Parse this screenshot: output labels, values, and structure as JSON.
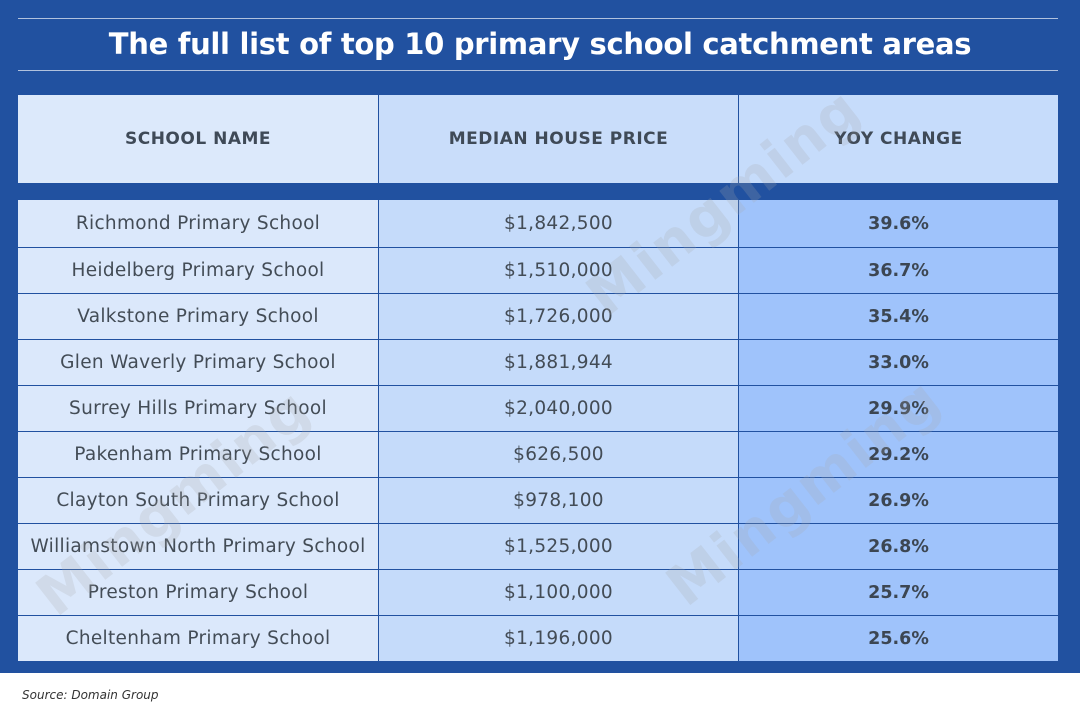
{
  "title": "The full list of top 10 primary school catchment areas",
  "watermark": "Mingming",
  "source": "Source: Domain Group",
  "colors": {
    "panel": "#2151a0",
    "name_col": "#dbe8fb",
    "price_col": "#c5dbfa",
    "yoy_col": "#9fc3fb"
  },
  "chart_data": {
    "type": "table",
    "title": "The full list of top 10 primary school catchment areas",
    "columns": [
      "SCHOOL NAME",
      "MEDIAN HOUSE PRICE",
      "YOY CHANGE"
    ],
    "rows": [
      {
        "school": "Richmond Primary School",
        "price": "$1,842,500",
        "yoy": "39.6%"
      },
      {
        "school": "Heidelberg Primary School",
        "price": "$1,510,000",
        "yoy": "36.7%"
      },
      {
        "school": "Valkstone Primary School",
        "price": "$1,726,000",
        "yoy": "35.4%"
      },
      {
        "school": "Glen Waverly Primary School",
        "price": "$1,881,944",
        "yoy": "33.0%"
      },
      {
        "school": "Surrey Hills Primary School",
        "price": "$2,040,000",
        "yoy": "29.9%"
      },
      {
        "school": "Pakenham Primary School",
        "price": "$626,500",
        "yoy": "29.2%"
      },
      {
        "school": "Clayton South Primary School",
        "price": "$978,100",
        "yoy": "26.9%"
      },
      {
        "school": "Williamstown North Primary School",
        "price": "$1,525,000",
        "yoy": "26.8%"
      },
      {
        "school": "Preston Primary School",
        "price": "$1,100,000",
        "yoy": "25.7%"
      },
      {
        "school": "Cheltenham Primary School",
        "price": "$1,196,000",
        "yoy": "25.6%"
      }
    ]
  }
}
